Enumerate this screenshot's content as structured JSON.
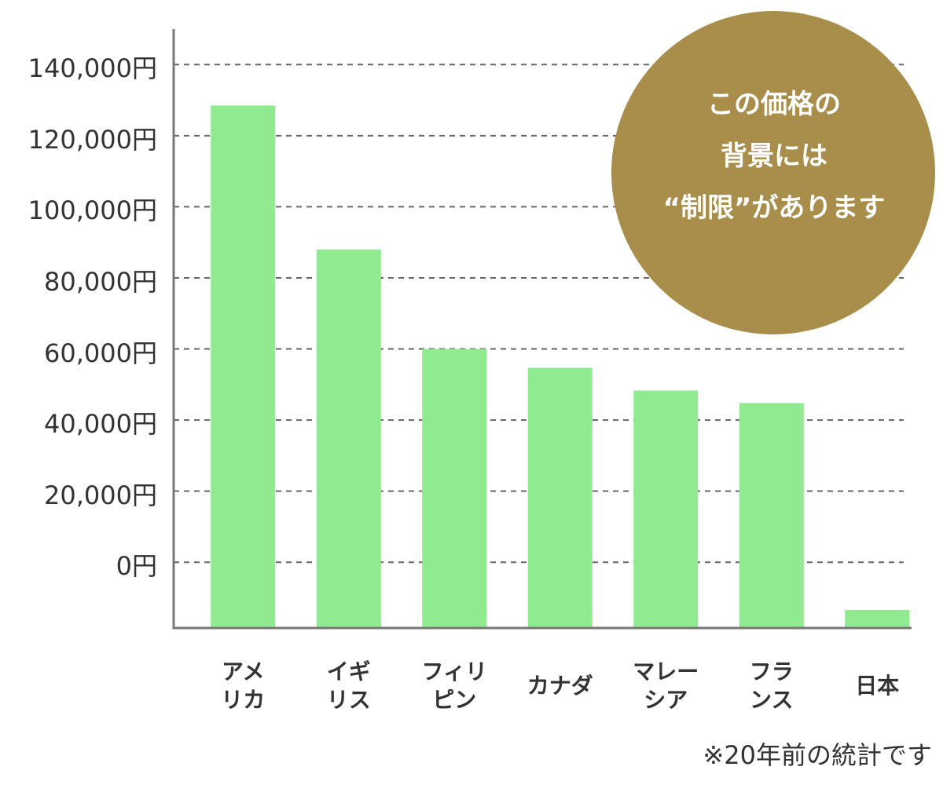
{
  "chart_data": {
    "type": "bar",
    "categories": [
      "アメ\nリカ",
      "イギ\nリス",
      "フィリ\nピン",
      "カナダ",
      "マレー\nシア",
      "フラ\nンス",
      "日本"
    ],
    "values": [
      128500,
      88000,
      60000,
      54700,
      48300,
      44800,
      -13400
    ],
    "color": "#90ea90",
    "ylim": [
      -18500,
      150000
    ],
    "yticks": [
      {
        "value": 0,
        "label": "0円"
      },
      {
        "value": 20000,
        "label": "20,000円"
      },
      {
        "value": 40000,
        "label": "40,000円"
      },
      {
        "value": 60000,
        "label": "60,000円"
      },
      {
        "value": 80000,
        "label": "80,000円"
      },
      {
        "value": 100000,
        "label": "100,000円"
      },
      {
        "value": 120000,
        "label": "120,000円"
      },
      {
        "value": 140000,
        "label": "140,000円"
      }
    ],
    "grid": true,
    "annotation": "この価格の\n背景には\n“制限”があります",
    "annotation_color": "#a88e4a",
    "footnote": "※20年前の統計です"
  }
}
